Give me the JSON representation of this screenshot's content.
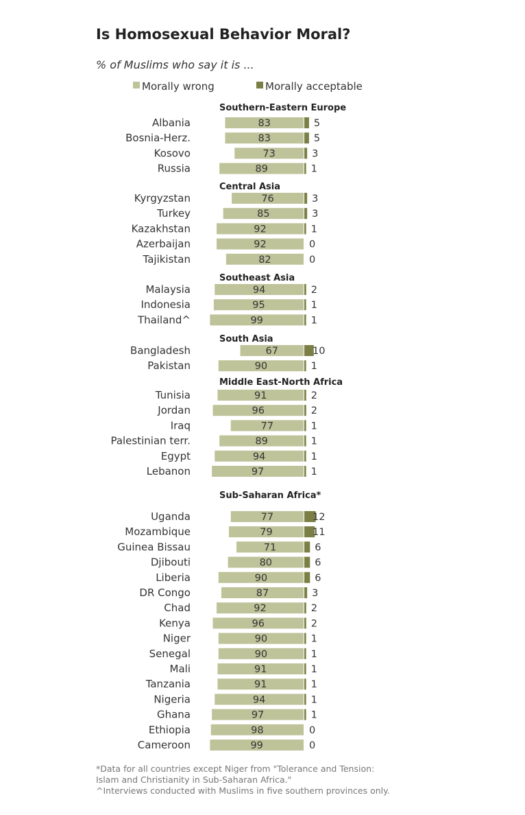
{
  "colors": {
    "wrong": "#bfc39a",
    "acceptable": "#7b7f45"
  },
  "notes": [
    "*Data for all countries except Niger from \"Tolerance and Tension: Islam and Christianity in Sub-Saharan Africa.\"",
    "^Interviews conducted with Muslims in five southern provinces only."
  ],
  "chart_data": {
    "type": "bar",
    "orientation": "horizontal",
    "stacked": "diverging",
    "title": "Is Homosexual Behavior Moral?",
    "subtitle": "% of Muslims who say it is ...",
    "legend": [
      "Morally wrong",
      "Morally acceptable"
    ],
    "unit": "%",
    "groups": [
      {
        "name": "Southern-Eastern  Europe",
        "rows": [
          {
            "label": "Albania",
            "wrong": 83,
            "acceptable": 5
          },
          {
            "label": "Bosnia-Herz.",
            "wrong": 83,
            "acceptable": 5
          },
          {
            "label": "Kosovo",
            "wrong": 73,
            "acceptable": 3
          },
          {
            "label": "Russia",
            "wrong": 89,
            "acceptable": 1
          }
        ]
      },
      {
        "name": "Central Asia",
        "rows": [
          {
            "label": "Kyrgyzstan",
            "wrong": 76,
            "acceptable": 3
          },
          {
            "label": "Turkey",
            "wrong": 85,
            "acceptable": 3
          },
          {
            "label": "Kazakhstan",
            "wrong": 92,
            "acceptable": 1
          },
          {
            "label": "Azerbaijan",
            "wrong": 92,
            "acceptable": 0
          },
          {
            "label": "Tajikistan",
            "wrong": 82,
            "acceptable": 0
          }
        ]
      },
      {
        "name": "Southeast  Asia",
        "rows": [
          {
            "label": "Malaysia",
            "wrong": 94,
            "acceptable": 2
          },
          {
            "label": "Indonesia",
            "wrong": 95,
            "acceptable": 1
          },
          {
            "label": "Thailand^",
            "wrong": 99,
            "acceptable": 1
          }
        ]
      },
      {
        "name": "South Asia",
        "rows": [
          {
            "label": "Bangladesh",
            "wrong": 67,
            "acceptable": 10
          },
          {
            "label": "Pakistan",
            "wrong": 90,
            "acceptable": 1
          }
        ]
      },
      {
        "name": "Middle East-North  Africa",
        "rows": [
          {
            "label": "Tunisia",
            "wrong": 91,
            "acceptable": 2
          },
          {
            "label": "Jordan",
            "wrong": 96,
            "acceptable": 2
          },
          {
            "label": "Iraq",
            "wrong": 77,
            "acceptable": 1
          },
          {
            "label": "Palestinian terr.",
            "wrong": 89,
            "acceptable": 1
          },
          {
            "label": "Egypt",
            "wrong": 94,
            "acceptable": 1
          },
          {
            "label": "Lebanon",
            "wrong": 97,
            "acceptable": 1
          }
        ]
      },
      {
        "name": "Sub-Saharan  Africa*",
        "rows": [
          {
            "label": "Uganda",
            "wrong": 77,
            "acceptable": 12
          },
          {
            "label": "Mozambique",
            "wrong": 79,
            "acceptable": 11
          },
          {
            "label": "Guinea Bissau",
            "wrong": 71,
            "acceptable": 6
          },
          {
            "label": "Djibouti",
            "wrong": 80,
            "acceptable": 6
          },
          {
            "label": "Liberia",
            "wrong": 90,
            "acceptable": 6
          },
          {
            "label": "DR Congo",
            "wrong": 87,
            "acceptable": 3
          },
          {
            "label": "Chad",
            "wrong": 92,
            "acceptable": 2
          },
          {
            "label": "Kenya",
            "wrong": 96,
            "acceptable": 2
          },
          {
            "label": "Niger",
            "wrong": 90,
            "acceptable": 1
          },
          {
            "label": "Senegal",
            "wrong": 90,
            "acceptable": 1
          },
          {
            "label": "Mali",
            "wrong": 91,
            "acceptable": 1
          },
          {
            "label": "Tanzania",
            "wrong": 91,
            "acceptable": 1
          },
          {
            "label": "Nigeria",
            "wrong": 94,
            "acceptable": 1
          },
          {
            "label": "Ghana",
            "wrong": 97,
            "acceptable": 1
          },
          {
            "label": "Ethiopia",
            "wrong": 98,
            "acceptable": 0
          },
          {
            "label": "Cameroon",
            "wrong": 99,
            "acceptable": 0
          }
        ]
      }
    ]
  }
}
